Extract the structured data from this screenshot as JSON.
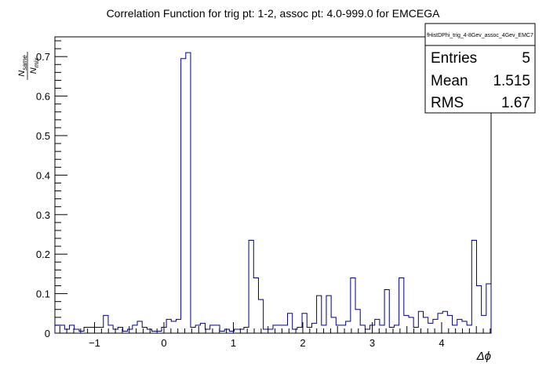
{
  "chart_data": {
    "type": "histogram-step",
    "title": "Correlation Function for trig pt: 1-2, assoc pt: 4.0-999.0 for EMCEGA",
    "xlabel": "Δϕ",
    "ylabel_num": "N",
    "ylabel_num_sub": "same",
    "ylabel_den": "N",
    "ylabel_den_sub": "mix",
    "xlim": [
      -1.5708,
      4.7124
    ],
    "ylim": [
      0,
      0.75
    ],
    "x_ticks": [
      -1,
      0,
      1,
      2,
      3,
      4
    ],
    "y_ticks": [
      0,
      0.1,
      0.2,
      0.3,
      0.4,
      0.5,
      0.6,
      0.7
    ],
    "x_tick_labels": [
      "−1",
      "0",
      "1",
      "2",
      "3",
      "4"
    ],
    "y_tick_labels": [
      "0",
      "0.1",
      "0.2",
      "0.3",
      "0.4",
      "0.5",
      "0.6",
      "0.7"
    ],
    "line_color": "#000080",
    "bin_count": 90,
    "values": [
      0.02,
      0.02,
      0.01,
      0.02,
      0.01,
      0.005,
      0.015,
      0.015,
      0.015,
      0.015,
      0.045,
      0.02,
      0.01,
      0.015,
      0.005,
      0.01,
      0.02,
      0.03,
      0.015,
      0.01,
      0.005,
      0.005,
      0.015,
      0.035,
      0.03,
      0.035,
      0.695,
      0.71,
      0.015,
      0.02,
      0.025,
      0.01,
      0.02,
      0.02,
      0.005,
      0.01,
      0.005,
      0.01,
      0.01,
      0.015,
      0.235,
      0.14,
      0.085,
      0.01,
      0.01,
      0.02,
      0.02,
      0.02,
      0.05,
      0.01,
      0.015,
      0.05,
      0.015,
      0.025,
      0.095,
      0.02,
      0.095,
      0.04,
      0.02,
      0.02,
      0.03,
      0.14,
      0.06,
      0.02,
      0.01,
      0.02,
      0.035,
      0.02,
      0.11,
      0.015,
      0.02,
      0.14,
      0.045,
      0.04,
      0.015,
      0.055,
      0.04,
      0.025,
      0.035,
      0.05,
      0.055,
      0.045,
      0.02,
      0.035,
      0.03,
      0.02,
      0.235,
      0.12,
      0.045,
      0.125
    ],
    "stats_box": {
      "name": "fHistDPhi_trig_4-8Gev_assoc_4Gev_EMC7",
      "rows": [
        {
          "label": "Entries",
          "value": "5"
        },
        {
          "label": "Mean",
          "value": "1.515"
        },
        {
          "label": "RMS",
          "value": "1.67"
        }
      ]
    }
  }
}
